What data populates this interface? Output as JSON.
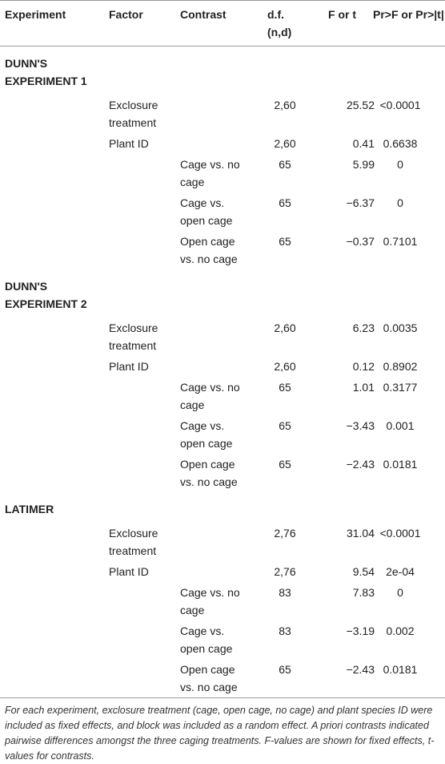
{
  "table": {
    "header": [
      "Experiment",
      "Factor",
      "Contrast",
      "d.f. (n,d)",
      "F or t",
      "Pr>F or Pr>|t|"
    ],
    "groups": [
      {
        "title": "DUNN'S EXPERIMENT 1",
        "rows": [
          {
            "factor": "Exclosure treatment",
            "df": "2,60",
            "stat": "25.52",
            "p": "<0.0001"
          },
          {
            "factor": "Plant ID",
            "df": "2,60",
            "stat": "0.41",
            "p": "0.6638"
          },
          {
            "contrast": "Cage vs. no cage",
            "df": "65",
            "stat": "5.99",
            "p": "0"
          },
          {
            "contrast": "Cage vs. open cage",
            "df": "65",
            "stat": "−6.37",
            "p": "0"
          },
          {
            "contrast": "Open cage vs. no cage",
            "df": "65",
            "stat": "−0.37",
            "p": "0.7101"
          }
        ]
      },
      {
        "title": "DUNN'S EXPERIMENT 2",
        "rows": [
          {
            "factor": "Exclosure treatment",
            "df": "2,60",
            "stat": "6.23",
            "p": "0.0035"
          },
          {
            "factor": "Plant ID",
            "df": "2,60",
            "stat": "0.12",
            "p": "0.8902"
          },
          {
            "contrast": "Cage vs. no cage",
            "df": "65",
            "stat": "1.01",
            "p": "0.3177"
          },
          {
            "contrast": "Cage vs. open cage",
            "df": "65",
            "stat": "−3.43",
            "p": "0.001"
          },
          {
            "contrast": "Open cage vs. no cage",
            "df": "65",
            "stat": "−2.43",
            "p": "0.0181"
          }
        ]
      },
      {
        "title": "LATIMER",
        "rows": [
          {
            "factor": "Exclosure treatment",
            "df": "2,76",
            "stat": "31.04",
            "p": "<0.0001"
          },
          {
            "factor": "Plant ID",
            "df": "2,76",
            "stat": "9.54",
            "p": "2e-04"
          },
          {
            "contrast": "Cage vs. no cage",
            "df": "83",
            "stat": "7.83",
            "p": "0"
          },
          {
            "contrast": "Cage vs. open cage",
            "df": "83",
            "stat": "−3.19",
            "p": "0.002"
          },
          {
            "contrast": "Open cage vs. no cage",
            "df": "65",
            "stat": "−2.43",
            "p": "0.0181"
          }
        ]
      }
    ],
    "footnote": "For each experiment, exclosure treatment (cage, open cage, no cage) and plant species ID were included as fixed effects, and block was included as a random effect. A priori contrasts indicated pairwise differences amongst the three caging treatments. F-values are shown for fixed effects, t-values for contrasts."
  }
}
